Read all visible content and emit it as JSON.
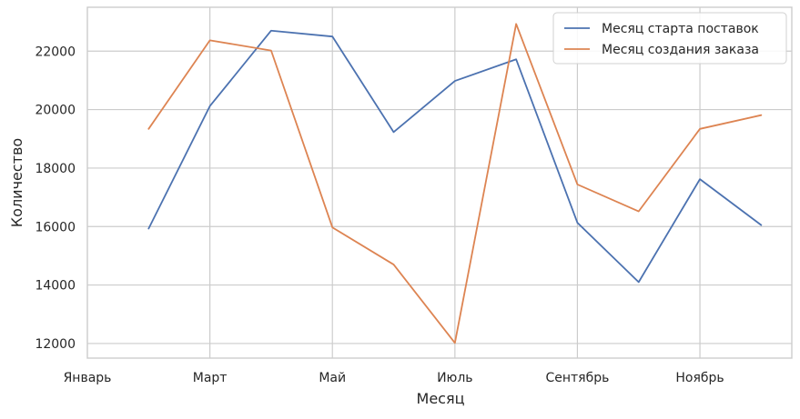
{
  "chart_data": {
    "type": "line",
    "title": "",
    "xlabel": "Месяц",
    "ylabel": "Количество",
    "x_tick_labels": [
      "Январь",
      "Март",
      "Май",
      "Июль",
      "Сентябрь",
      "Ноябрь"
    ],
    "x": [
      2,
      3,
      4,
      5,
      6,
      7,
      8,
      9,
      10,
      11,
      12
    ],
    "xlim": [
      1,
      12.5
    ],
    "ylim": [
      11500,
      23500
    ],
    "y_ticks": [
      12000,
      14000,
      16000,
      18000,
      20000,
      22000
    ],
    "grid": true,
    "legend_position": "top-right",
    "series": [
      {
        "name": "Месяц старта поставок",
        "color": "#4c72b0",
        "values": [
          15930,
          20120,
          22700,
          22500,
          19230,
          20980,
          21720,
          16130,
          14100,
          17620,
          16050
        ]
      },
      {
        "name": "Месяц создания заказа",
        "color": "#dd8452",
        "values": [
          19340,
          22370,
          22020,
          15970,
          14700,
          12020,
          22930,
          17440,
          16520,
          19340,
          19810
        ]
      }
    ]
  }
}
